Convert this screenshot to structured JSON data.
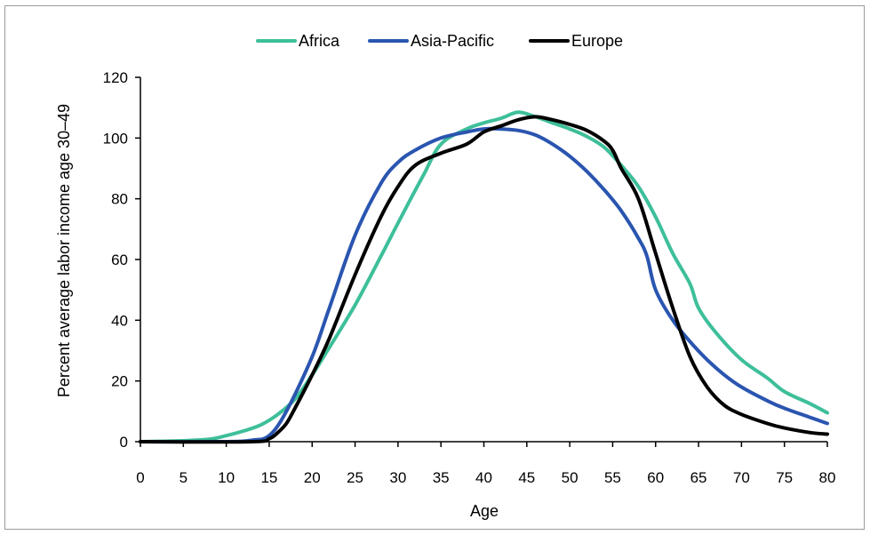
{
  "chart_data": {
    "type": "line",
    "title": "",
    "xlabel": "Age",
    "ylabel": "Percent average labor income age 30–49",
    "xlim": [
      0,
      80
    ],
    "ylim": [
      0,
      120
    ],
    "x_ticks": [
      0,
      5,
      10,
      15,
      20,
      25,
      30,
      35,
      40,
      45,
      50,
      55,
      60,
      65,
      70,
      75,
      80
    ],
    "y_ticks": [
      0,
      20,
      40,
      60,
      80,
      100,
      120
    ],
    "grid": false,
    "legend_position": "top-center",
    "series": [
      {
        "name": "Africa",
        "color": "#3dbf9a",
        "x": [
          0,
          5,
          8,
          10,
          12,
          14,
          16,
          18,
          20,
          22,
          25,
          28,
          30,
          33,
          35,
          38,
          40,
          42,
          44,
          46,
          48,
          50,
          52,
          54,
          56,
          58,
          60,
          62,
          64,
          65,
          67,
          70,
          73,
          75,
          78,
          80
        ],
        "values": [
          0,
          0.3,
          0.8,
          2,
          3.5,
          5.5,
          9,
          14,
          22,
          31,
          45,
          61,
          72,
          88,
          98,
          103,
          105,
          106.5,
          108.5,
          107,
          105,
          103,
          100.5,
          97,
          91,
          84,
          74,
          62,
          52,
          44,
          36,
          27,
          21,
          16.5,
          12.5,
          9.5
        ]
      },
      {
        "name": "Asia-Pacific",
        "color": "#2a55b0",
        "x": [
          0,
          10,
          13,
          15,
          17,
          20,
          22,
          25,
          28,
          30,
          32,
          35,
          38,
          40,
          42,
          44,
          46,
          48,
          50,
          52,
          54,
          56,
          58,
          59,
          60,
          62,
          64,
          66,
          68,
          70,
          73,
          75,
          78,
          80
        ],
        "values": [
          0,
          0,
          0.5,
          2,
          10,
          28,
          44,
          68,
          85,
          92,
          96,
          100,
          102,
          103,
          103,
          102.5,
          101,
          98,
          94,
          89,
          83,
          76,
          67,
          61,
          50,
          40,
          33,
          27,
          22,
          18,
          13.5,
          11,
          8,
          6
        ]
      },
      {
        "name": "Europe",
        "color": "#000000",
        "x": [
          0,
          13,
          15,
          16,
          17,
          18,
          20,
          22,
          25,
          28,
          30,
          32,
          35,
          38,
          40,
          42,
          44,
          46,
          48,
          50,
          52,
          54,
          55,
          56,
          58,
          60,
          62,
          64,
          66,
          68,
          70,
          73,
          75,
          78,
          80
        ],
        "values": [
          0,
          0,
          1,
          3,
          6,
          11,
          22,
          34,
          55,
          74,
          84,
          91,
          95,
          98,
          102,
          104,
          106,
          107,
          106,
          104.5,
          102.5,
          99,
          96,
          90,
          80,
          62,
          44,
          28,
          18,
          12,
          9,
          6,
          4.5,
          3,
          2.5
        ]
      }
    ]
  }
}
